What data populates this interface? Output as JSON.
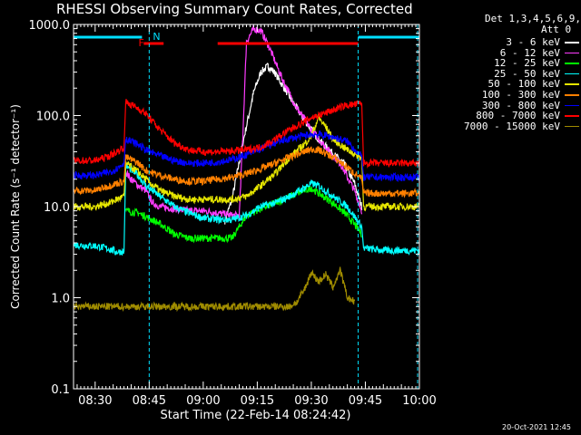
{
  "title": "RHESSI Observing Summary Count Rates, Corrected",
  "detectors_line": "Det 1,3,4,5,6,9,",
  "attenuator_line": "Att 0",
  "timestamp": "20-Oct-2021 12:45",
  "flags": {
    "F": "F",
    "N": "N"
  },
  "colors": {
    "axis": "#ffffff",
    "background": "#000000",
    "flag_F": "#ff0000",
    "flag_N": "#00e0ff"
  },
  "chart_data": {
    "type": "line",
    "xlabel": "Start Time (22-Feb-14 08:24:42)",
    "ylabel": "Corrected Count Rate (s⁻¹ detector⁻¹)",
    "ylim": [
      0.1,
      1000
    ],
    "yscale": "log",
    "xlim_minutes_after_0824": [
      0,
      96
    ],
    "y_ticks": [
      "0.1",
      "1.0",
      "10.0",
      "100.0",
      "1000.0"
    ],
    "x_ticks": [
      "08:30",
      "08:45",
      "09:00",
      "09:15",
      "09:30",
      "09:45",
      "10:00"
    ],
    "x_ticks_minutes": [
      6,
      21,
      36,
      51,
      66,
      81,
      96
    ],
    "legend_position": "right",
    "night_intervals_minutes": [
      [
        -1,
        19
      ],
      [
        79,
        96
      ]
    ],
    "flare_intervals_minutes": [
      [
        19.5,
        25
      ],
      [
        40,
        79
      ]
    ],
    "series": [
      {
        "name": "3 - 6 keV",
        "color": "#ffffff",
        "x": [
          0,
          5,
          10,
          14,
          14.5,
          18,
          20,
          24,
          28,
          32,
          36,
          40,
          42,
          44,
          47,
          50,
          52,
          54,
          56,
          60,
          64,
          68,
          72,
          75,
          78,
          80,
          81,
          90,
          96
        ],
        "y": [
          null,
          null,
          null,
          null,
          null,
          null,
          null,
          null,
          null,
          null,
          null,
          null,
          7,
          12,
          50,
          180,
          300,
          350,
          290,
          160,
          90,
          55,
          38,
          30,
          18,
          10,
          null,
          null,
          null
        ]
      },
      {
        "name": "6 - 12 keV",
        "color": "#ff3cff",
        "x": [
          14.5,
          16,
          18,
          20,
          22,
          24,
          28,
          32,
          36,
          40,
          44,
          46,
          47,
          48,
          50,
          52,
          54,
          58,
          62,
          66,
          70,
          74,
          78,
          80
        ],
        "y": [
          24,
          20,
          17,
          15,
          11,
          10,
          9.5,
          9,
          9,
          8.5,
          8,
          8,
          60,
          650,
          900,
          850,
          600,
          250,
          120,
          70,
          45,
          30,
          15,
          9
        ]
      },
      {
        "name": "12 - 25 keV",
        "color": "#00ff00",
        "x": [
          14.5,
          18,
          20,
          24,
          28,
          32,
          36,
          40,
          44,
          46,
          48,
          52,
          56,
          60,
          64,
          66,
          68,
          72,
          76,
          80
        ],
        "y": [
          9,
          8.5,
          7.8,
          6.5,
          5,
          4.5,
          4.5,
          4.5,
          4.5,
          6,
          8,
          9.5,
          11,
          13,
          15,
          16,
          14,
          11,
          8,
          5
        ]
      },
      {
        "name": "25 - 50 keV",
        "color": "#00ffff",
        "x": [
          0,
          6,
          9,
          10,
          12,
          14,
          14.5,
          18,
          20,
          24,
          28,
          32,
          36,
          40,
          44,
          48,
          52,
          56,
          60,
          64,
          66,
          68,
          72,
          76,
          80,
          80.5,
          86,
          90,
          96
        ],
        "y": [
          3.8,
          3.7,
          3.5,
          3.4,
          3.2,
          3.2,
          28,
          22,
          17,
          13,
          10,
          8.5,
          7.5,
          7.2,
          7.2,
          8,
          10,
          11,
          13,
          16,
          18,
          17,
          13,
          10,
          6,
          3.5,
          3.3,
          3.3,
          3.3
        ]
      },
      {
        "name": "50 - 100 keV",
        "color": "#e6e600",
        "x": [
          0,
          6,
          10,
          12,
          14,
          14.5,
          18,
          20,
          24,
          28,
          32,
          36,
          40,
          44,
          48,
          52,
          56,
          60,
          64,
          66,
          68,
          70,
          72,
          76,
          78,
          80,
          80.5,
          86,
          90,
          96
        ],
        "y": [
          10,
          10,
          11,
          12,
          13,
          30,
          24,
          20,
          15,
          13,
          12,
          12,
          12,
          12,
          13,
          17,
          23,
          35,
          48,
          60,
          95,
          75,
          55,
          42,
          38,
          34,
          10,
          10,
          10,
          10
        ]
      },
      {
        "name": "100 - 300 keV",
        "color": "#ff8000",
        "x": [
          0,
          6,
          10,
          12,
          14,
          14.5,
          18,
          20,
          24,
          28,
          32,
          36,
          40,
          44,
          48,
          52,
          56,
          60,
          64,
          66,
          68,
          72,
          76,
          80,
          80.5,
          86,
          90,
          96
        ],
        "y": [
          15,
          15,
          17,
          18,
          19,
          35,
          30,
          25,
          22,
          20,
          19,
          19,
          20,
          21,
          23,
          26,
          30,
          35,
          40,
          43,
          42,
          35,
          27,
          20,
          14,
          14,
          14,
          14
        ]
      },
      {
        "name": "300 - 800 keV",
        "color": "#0000ff",
        "x": [
          0,
          6,
          10,
          12,
          14,
          14.5,
          18,
          20,
          24,
          28,
          32,
          36,
          40,
          44,
          48,
          52,
          56,
          60,
          64,
          66,
          68,
          72,
          76,
          80,
          80.5,
          86,
          90,
          96
        ],
        "y": [
          22,
          22,
          24,
          26,
          30,
          55,
          48,
          42,
          36,
          32,
          30,
          30,
          31,
          33,
          37,
          43,
          50,
          56,
          60,
          62,
          62,
          58,
          52,
          35,
          21,
          21,
          21,
          21
        ]
      },
      {
        "name": "800 - 7000 keV",
        "color": "#ff0000",
        "x": [
          0,
          6,
          10,
          12,
          14,
          14.5,
          18,
          20,
          24,
          28,
          32,
          36,
          40,
          44,
          48,
          52,
          56,
          60,
          64,
          66,
          68,
          72,
          76,
          80,
          80.5,
          86,
          90,
          96
        ],
        "y": [
          32,
          32,
          36,
          40,
          45,
          140,
          120,
          105,
          70,
          50,
          42,
          40,
          40,
          41,
          42,
          45,
          55,
          70,
          85,
          95,
          100,
          115,
          130,
          135,
          30,
          30,
          30,
          30
        ]
      },
      {
        "name": "7000 - 15000 keV",
        "color": "#a08c00",
        "x": [
          0,
          10,
          12,
          14,
          14.5,
          20,
          21,
          60,
          62,
          64,
          66,
          68,
          70,
          72,
          74,
          76,
          78
        ],
        "y": [
          0.8,
          0.8,
          0.8,
          0.8,
          0.8,
          0.8,
          0.8,
          0.8,
          0.9,
          1.2,
          1.9,
          1.5,
          1.8,
          1.3,
          2.0,
          1.0,
          0.9
        ]
      }
    ]
  }
}
